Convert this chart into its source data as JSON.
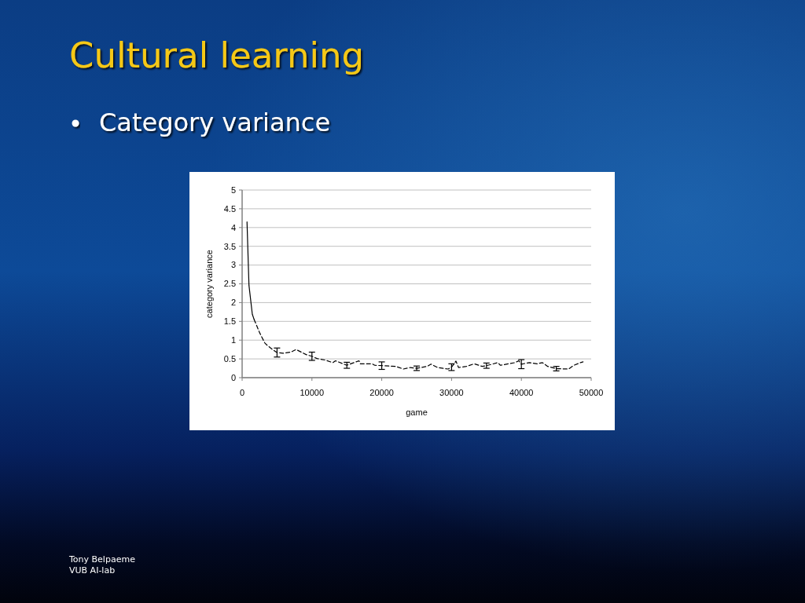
{
  "chart_data": {
    "type": "line",
    "title": "Cultural learning",
    "subtitle": "Category variance",
    "xlabel": "game",
    "ylabel": "category variance",
    "annotations": [
      "Tony Belpaeme",
      "VUB AI-lab"
    ],
    "xlim": [
      0,
      50000
    ],
    "xticks": [
      0,
      10000,
      20000,
      30000,
      40000,
      50000
    ],
    "ylim": [
      0,
      5
    ],
    "yticks": [
      0,
      0.5,
      1,
      1.5,
      2,
      2.5,
      3,
      3.5,
      4,
      4.5,
      5
    ],
    "grid": "y",
    "series": [
      {
        "color": "#000000",
        "line_style": "solid",
        "x": [
          700,
          980,
          1460,
          1720
        ],
        "values": [
          4.15,
          2.46,
          1.69,
          1.55
        ]
      },
      {
        "color": "#000000",
        "line_style": "dashed",
        "x": [
          1720,
          2500,
          3230,
          3600,
          4360,
          5000,
          5860,
          6980,
          7740,
          8480,
          9230,
          10000,
          10730,
          11860,
          12990,
          13370,
          15000,
          16740,
          16930,
          18600,
          19000,
          20000,
          22000,
          23100,
          24060,
          25000,
          26500,
          27060,
          28000,
          29500,
          30000,
          30630,
          31000,
          32130,
          33250,
          34380,
          35000,
          36630,
          37000,
          39070,
          39640,
          40000,
          41140,
          42270,
          43020,
          43770,
          45000,
          46770,
          47520,
          48460,
          48840
        ],
        "values": [
          1.55,
          1.2,
          0.93,
          0.86,
          0.75,
          0.67,
          0.65,
          0.68,
          0.75,
          0.68,
          0.61,
          0.57,
          0.51,
          0.47,
          0.4,
          0.45,
          0.33,
          0.45,
          0.37,
          0.37,
          0.33,
          0.32,
          0.3,
          0.23,
          0.27,
          0.25,
          0.3,
          0.36,
          0.27,
          0.23,
          0.28,
          0.44,
          0.27,
          0.3,
          0.37,
          0.3,
          0.32,
          0.4,
          0.33,
          0.4,
          0.45,
          0.36,
          0.4,
          0.37,
          0.4,
          0.3,
          0.24,
          0.23,
          0.33,
          0.4,
          0.42
        ],
        "errors": [
          null,
          null,
          null,
          null,
          null,
          0.12,
          null,
          null,
          null,
          null,
          null,
          0.11,
          null,
          null,
          null,
          null,
          0.08,
          null,
          null,
          null,
          null,
          0.1,
          null,
          null,
          null,
          0.06,
          null,
          null,
          null,
          null,
          0.09,
          null,
          null,
          null,
          null,
          null,
          0.07,
          null,
          null,
          null,
          null,
          0.12,
          null,
          null,
          null,
          null,
          0.06,
          null,
          null,
          null,
          null
        ]
      }
    ]
  }
}
